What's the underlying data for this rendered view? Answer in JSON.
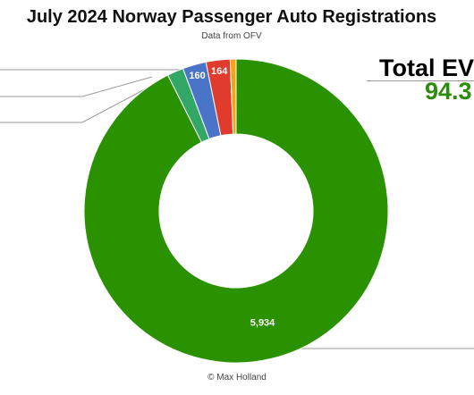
{
  "chart_data": {
    "type": "pie",
    "title": "July 2024 Norway Passenger Auto Registrations",
    "subtitle": "Data from OFV",
    "donut": true,
    "slices": [
      {
        "value": 5934,
        "label": "5,934",
        "color": "#2a9200"
      },
      {
        "value": 111,
        "label": "",
        "color": "#33a866"
      },
      {
        "value": 160,
        "label": "160",
        "color": "#4a74c8"
      },
      {
        "value": 164,
        "label": "164",
        "color": "#e03b2c"
      },
      {
        "value": 40,
        "label": "",
        "color": "#f4a512"
      }
    ]
  },
  "annotation": {
    "label": "Total EV",
    "value": "94.3"
  },
  "credit": "© Max Holland"
}
